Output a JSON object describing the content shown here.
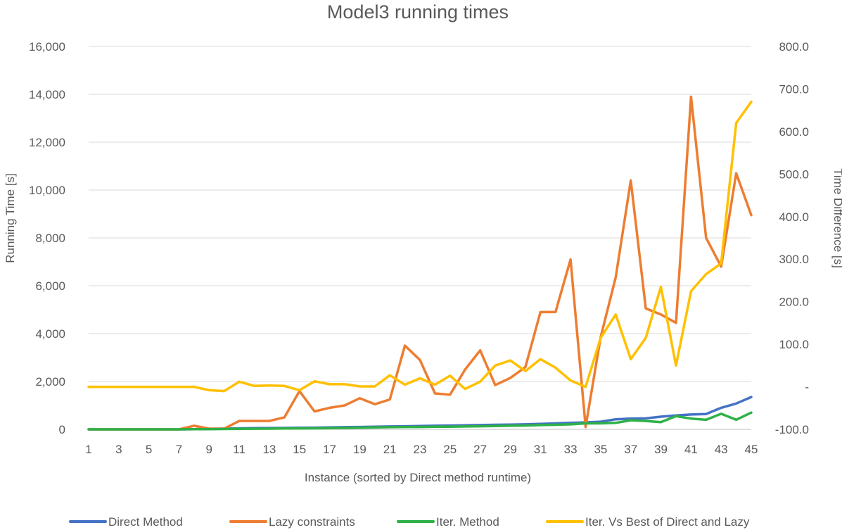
{
  "chart_data": {
    "type": "line",
    "title": "Model3 running times",
    "xlabel": "Instance (sorted by Direct method  runtime)",
    "ylabel": "Running Time  [s]",
    "y2label": "Time Difference [s]",
    "x": [
      1,
      2,
      3,
      4,
      5,
      6,
      7,
      8,
      9,
      10,
      11,
      12,
      13,
      14,
      15,
      16,
      17,
      18,
      19,
      20,
      21,
      22,
      23,
      24,
      25,
      26,
      27,
      28,
      29,
      30,
      31,
      32,
      33,
      34,
      35,
      36,
      37,
      38,
      39,
      40,
      41,
      42,
      43,
      44,
      45
    ],
    "x_tick_labels": [
      "1",
      "3",
      "5",
      "7",
      "9",
      "11",
      "13",
      "15",
      "17",
      "19",
      "21",
      "23",
      "25",
      "27",
      "29",
      "31",
      "33",
      "35",
      "37",
      "39",
      "41",
      "43",
      "45"
    ],
    "ylim": [
      0,
      16000
    ],
    "y_tick_labels": [
      "0",
      "2,000",
      "4,000",
      "6,000",
      "8,000",
      "10,000",
      "12,000",
      "14,000",
      "16,000"
    ],
    "y2lim": [
      -100,
      800
    ],
    "y2_tick_labels": [
      "-100.0",
      "-",
      "100.0",
      "200.0",
      "300.0",
      "400.0",
      "500.0",
      "600.0",
      "700.0",
      "800.0"
    ],
    "grid": true,
    "legend_position": "bottom",
    "series": [
      {
        "name": "Direct Method",
        "axis": "left",
        "color": "#4472C4",
        "values": [
          0,
          0,
          0,
          0,
          0,
          0,
          0,
          10,
          20,
          30,
          40,
          50,
          55,
          60,
          65,
          70,
          80,
          90,
          100,
          110,
          120,
          130,
          140,
          150,
          160,
          170,
          180,
          190,
          200,
          210,
          230,
          250,
          270,
          290,
          320,
          420,
          450,
          460,
          530,
          580,
          620,
          640,
          900,
          1080,
          1350
        ]
      },
      {
        "name": "Lazy constraints",
        "axis": "left",
        "color": "#ED7D31",
        "values": [
          0,
          0,
          0,
          0,
          0,
          0,
          0,
          150,
          30,
          30,
          350,
          350,
          350,
          500,
          1600,
          750,
          900,
          1000,
          1300,
          1050,
          1250,
          3500,
          2900,
          1500,
          1450,
          2500,
          3300,
          1850,
          2150,
          2600,
          4900,
          4900,
          7100,
          100,
          3850,
          6350,
          10400,
          5050,
          4800,
          4450,
          13900,
          8000,
          6800,
          10700,
          8950
        ]
      },
      {
        "name": "Iter. Method",
        "axis": "left",
        "color": "#2EB148",
        "values": [
          0,
          0,
          0,
          0,
          0,
          0,
          0,
          5,
          10,
          15,
          20,
          25,
          30,
          35,
          40,
          45,
          50,
          60,
          70,
          80,
          90,
          100,
          100,
          110,
          110,
          120,
          130,
          140,
          150,
          160,
          180,
          190,
          210,
          250,
          250,
          270,
          380,
          350,
          300,
          550,
          450,
          400,
          650,
          400,
          700
        ]
      },
      {
        "name": "Iter. Vs Best of Direct and Lazy",
        "axis": "right",
        "color": "#FFC000",
        "values": [
          0,
          0,
          0,
          0,
          0,
          0,
          0,
          0,
          -8,
          -10,
          12,
          2,
          3,
          2,
          -8,
          13,
          6,
          6,
          1,
          1,
          27,
          5,
          20,
          5,
          26,
          -5,
          12,
          50,
          62,
          37,
          65,
          45,
          15,
          0,
          115,
          170,
          65,
          115,
          235,
          50,
          225,
          265,
          290,
          620,
          670
        ]
      }
    ]
  }
}
